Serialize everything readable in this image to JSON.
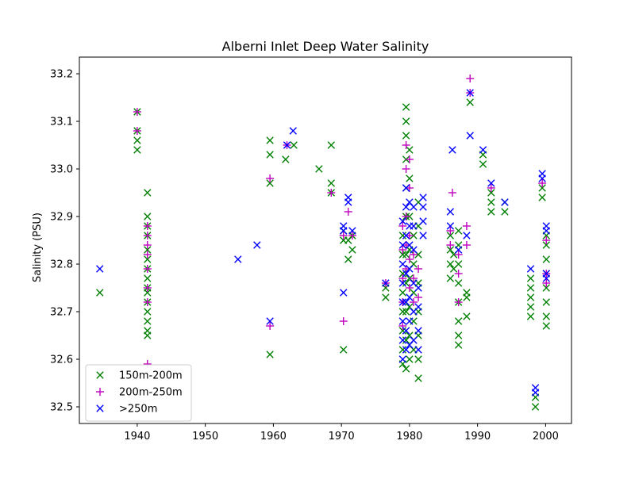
{
  "chart_data": {
    "type": "scatter",
    "title": "Alberni Inlet Deep Water Salinity",
    "xlabel": "",
    "ylabel": "Salinity (PSU)",
    "xlim": [
      1931.5,
      2003.8
    ],
    "ylim": [
      32.465,
      33.235
    ],
    "xticks": [
      1940,
      1950,
      1960,
      1970,
      1980,
      1990,
      2000
    ],
    "yticks": [
      32.5,
      32.6,
      32.7,
      32.8,
      32.9,
      33.0,
      33.1,
      33.2
    ],
    "xtick_labels": [
      "1940",
      "1950",
      "1960",
      "1970",
      "1980",
      "1990",
      "2000"
    ],
    "ytick_labels": [
      "32.5",
      "32.6",
      "32.7",
      "32.8",
      "32.9",
      "33.0",
      "33.1",
      "33.2"
    ],
    "legend_position": "lower-left",
    "series": [
      {
        "name": "150m-200m",
        "marker": "x",
        "color": "#008000",
        "points": [
          [
            1934.5,
            32.74
          ],
          [
            1940.0,
            33.04
          ],
          [
            1940.0,
            33.06
          ],
          [
            1940.0,
            33.08
          ],
          [
            1940.0,
            33.12
          ],
          [
            1941.5,
            32.65
          ],
          [
            1941.5,
            32.66
          ],
          [
            1941.5,
            32.68
          ],
          [
            1941.5,
            32.7
          ],
          [
            1941.5,
            32.72
          ],
          [
            1941.5,
            32.74
          ],
          [
            1941.5,
            32.75
          ],
          [
            1941.5,
            32.77
          ],
          [
            1941.5,
            32.79
          ],
          [
            1941.5,
            32.81
          ],
          [
            1941.5,
            32.83
          ],
          [
            1941.5,
            32.86
          ],
          [
            1941.5,
            32.88
          ],
          [
            1941.5,
            32.9
          ],
          [
            1941.5,
            32.95
          ],
          [
            1959.5,
            32.61
          ],
          [
            1959.5,
            32.97
          ],
          [
            1959.5,
            33.03
          ],
          [
            1959.5,
            33.06
          ],
          [
            1961.8,
            33.02
          ],
          [
            1963.0,
            33.05
          ],
          [
            1966.7,
            33.0
          ],
          [
            1968.5,
            32.95
          ],
          [
            1968.5,
            32.97
          ],
          [
            1968.5,
            33.05
          ],
          [
            1970.3,
            32.62
          ],
          [
            1970.3,
            32.85
          ],
          [
            1970.3,
            32.87
          ],
          [
            1971.0,
            32.81
          ],
          [
            1971.0,
            32.85
          ],
          [
            1971.6,
            32.83
          ],
          [
            1971.6,
            32.86
          ],
          [
            1976.5,
            32.73
          ],
          [
            1976.5,
            32.75
          ],
          [
            1979.0,
            32.59
          ],
          [
            1979.0,
            32.62
          ],
          [
            1979.0,
            32.66
          ],
          [
            1979.0,
            32.7
          ],
          [
            1979.0,
            32.74
          ],
          [
            1979.0,
            32.78
          ],
          [
            1979.0,
            32.82
          ],
          [
            1979.0,
            32.86
          ],
          [
            1979.5,
            32.58
          ],
          [
            1979.5,
            32.64
          ],
          [
            1979.5,
            32.7
          ],
          [
            1979.5,
            32.76
          ],
          [
            1979.5,
            32.82
          ],
          [
            1979.5,
            32.9
          ],
          [
            1979.5,
            32.96
          ],
          [
            1979.5,
            33.02
          ],
          [
            1979.5,
            33.07
          ],
          [
            1979.5,
            33.1
          ],
          [
            1979.5,
            33.13
          ],
          [
            1980.0,
            32.6
          ],
          [
            1980.0,
            32.65
          ],
          [
            1980.0,
            32.71
          ],
          [
            1980.0,
            32.77
          ],
          [
            1980.0,
            32.83
          ],
          [
            1980.0,
            32.9
          ],
          [
            1980.0,
            32.98
          ],
          [
            1980.0,
            33.04
          ],
          [
            1980.6,
            32.62
          ],
          [
            1980.6,
            32.68
          ],
          [
            1980.6,
            32.74
          ],
          [
            1980.6,
            32.8
          ],
          [
            1980.6,
            32.86
          ],
          [
            1981.3,
            32.56
          ],
          [
            1981.3,
            32.6
          ],
          [
            1981.3,
            32.65
          ],
          [
            1981.3,
            32.7
          ],
          [
            1981.3,
            32.76
          ],
          [
            1981.3,
            32.82
          ],
          [
            1981.3,
            32.88
          ],
          [
            1981.3,
            32.93
          ],
          [
            1986.0,
            32.77
          ],
          [
            1986.0,
            32.8
          ],
          [
            1986.0,
            32.83
          ],
          [
            1986.0,
            32.86
          ],
          [
            1986.5,
            32.79
          ],
          [
            1986.5,
            32.82
          ],
          [
            1987.2,
            32.63
          ],
          [
            1987.2,
            32.65
          ],
          [
            1987.2,
            32.68
          ],
          [
            1987.2,
            32.72
          ],
          [
            1987.2,
            32.76
          ],
          [
            1987.2,
            32.8
          ],
          [
            1987.2,
            32.84
          ],
          [
            1987.2,
            32.87
          ],
          [
            1988.4,
            32.69
          ],
          [
            1988.4,
            32.73
          ],
          [
            1988.4,
            32.74
          ],
          [
            1988.9,
            33.14
          ],
          [
            1990.8,
            33.01
          ],
          [
            1990.8,
            33.03
          ],
          [
            1992.0,
            32.91
          ],
          [
            1992.0,
            32.93
          ],
          [
            1992.0,
            32.95
          ],
          [
            1994.0,
            32.91
          ],
          [
            1994.0,
            32.93
          ],
          [
            1997.8,
            32.69
          ],
          [
            1997.8,
            32.71
          ],
          [
            1997.8,
            32.73
          ],
          [
            1997.8,
            32.75
          ],
          [
            1997.8,
            32.77
          ],
          [
            1998.5,
            32.5
          ],
          [
            1998.5,
            32.52
          ],
          [
            1999.5,
            32.94
          ],
          [
            1999.5,
            32.96
          ],
          [
            2000.1,
            32.67
          ],
          [
            2000.1,
            32.69
          ],
          [
            2000.1,
            32.72
          ],
          [
            2000.1,
            32.75
          ],
          [
            2000.1,
            32.78
          ],
          [
            2000.1,
            32.81
          ],
          [
            2000.1,
            32.84
          ],
          [
            2000.1,
            32.86
          ]
        ]
      },
      {
        "name": "200m-250m",
        "marker": "+",
        "color": "#bf00bf",
        "points": [
          [
            1940.0,
            33.08
          ],
          [
            1940.0,
            33.12
          ],
          [
            1941.5,
            32.59
          ],
          [
            1941.5,
            32.72
          ],
          [
            1941.5,
            32.75
          ],
          [
            1941.5,
            32.79
          ],
          [
            1941.5,
            32.82
          ],
          [
            1941.5,
            32.84
          ],
          [
            1941.5,
            32.86
          ],
          [
            1941.5,
            32.88
          ],
          [
            1959.5,
            32.67
          ],
          [
            1959.5,
            32.98
          ],
          [
            1962.0,
            33.05
          ],
          [
            1968.5,
            32.95
          ],
          [
            1970.3,
            32.68
          ],
          [
            1970.3,
            32.86
          ],
          [
            1971.0,
            32.91
          ],
          [
            1971.6,
            32.86
          ],
          [
            1976.5,
            32.76
          ],
          [
            1979.0,
            32.67
          ],
          [
            1979.0,
            32.72
          ],
          [
            1979.0,
            32.77
          ],
          [
            1979.0,
            32.83
          ],
          [
            1979.0,
            32.88
          ],
          [
            1979.5,
            32.79
          ],
          [
            1979.5,
            32.84
          ],
          [
            1979.5,
            32.9
          ],
          [
            1979.5,
            33.0
          ],
          [
            1979.5,
            33.05
          ],
          [
            1980.0,
            32.75
          ],
          [
            1980.0,
            32.81
          ],
          [
            1980.0,
            32.86
          ],
          [
            1980.0,
            32.96
          ],
          [
            1980.0,
            33.02
          ],
          [
            1980.6,
            32.72
          ],
          [
            1980.6,
            32.77
          ],
          [
            1980.6,
            32.82
          ],
          [
            1981.3,
            32.73
          ],
          [
            1981.3,
            32.79
          ],
          [
            1986.0,
            32.84
          ],
          [
            1986.0,
            32.87
          ],
          [
            1986.3,
            32.95
          ],
          [
            1987.2,
            32.72
          ],
          [
            1987.2,
            32.78
          ],
          [
            1987.2,
            32.82
          ],
          [
            1988.4,
            32.84
          ],
          [
            1988.4,
            32.88
          ],
          [
            1988.9,
            33.19
          ],
          [
            1988.9,
            33.16
          ],
          [
            1992.0,
            32.96
          ],
          [
            1999.5,
            32.97
          ],
          [
            2000.1,
            32.76
          ],
          [
            2000.1,
            32.78
          ],
          [
            2000.1,
            32.85
          ]
        ]
      },
      {
        "name": ">250m",
        "marker": "x",
        "color": "#0000ff",
        "points": [
          [
            1934.5,
            32.79
          ],
          [
            1954.8,
            32.81
          ],
          [
            1957.6,
            32.84
          ],
          [
            1959.5,
            32.68
          ],
          [
            1962.0,
            33.05
          ],
          [
            1962.9,
            33.08
          ],
          [
            1970.3,
            32.74
          ],
          [
            1970.3,
            32.87
          ],
          [
            1970.3,
            32.88
          ],
          [
            1971.0,
            32.93
          ],
          [
            1971.0,
            32.94
          ],
          [
            1971.6,
            32.87
          ],
          [
            1976.5,
            32.76
          ],
          [
            1979.0,
            32.6
          ],
          [
            1979.0,
            32.64
          ],
          [
            1979.0,
            32.68
          ],
          [
            1979.0,
            32.72
          ],
          [
            1979.0,
            32.76
          ],
          [
            1979.0,
            32.8
          ],
          [
            1979.0,
            32.84
          ],
          [
            1979.0,
            32.89
          ],
          [
            1979.5,
            32.62
          ],
          [
            1979.5,
            32.66
          ],
          [
            1979.5,
            32.72
          ],
          [
            1979.5,
            32.78
          ],
          [
            1979.5,
            32.86
          ],
          [
            1979.5,
            32.92
          ],
          [
            1979.5,
            32.96
          ],
          [
            1980.0,
            32.63
          ],
          [
            1980.0,
            32.68
          ],
          [
            1980.0,
            32.73
          ],
          [
            1980.0,
            32.79
          ],
          [
            1980.0,
            32.84
          ],
          [
            1980.0,
            32.88
          ],
          [
            1980.0,
            32.93
          ],
          [
            1980.6,
            32.64
          ],
          [
            1980.6,
            32.7
          ],
          [
            1980.6,
            32.76
          ],
          [
            1980.6,
            32.83
          ],
          [
            1980.6,
            32.88
          ],
          [
            1980.6,
            32.92
          ],
          [
            1981.3,
            32.62
          ],
          [
            1981.3,
            32.66
          ],
          [
            1981.3,
            32.71
          ],
          [
            1981.3,
            32.75
          ],
          [
            1982.0,
            32.86
          ],
          [
            1982.0,
            32.89
          ],
          [
            1982.0,
            32.92
          ],
          [
            1982.0,
            32.94
          ],
          [
            1986.0,
            32.88
          ],
          [
            1986.0,
            32.91
          ],
          [
            1986.3,
            33.04
          ],
          [
            1987.2,
            32.83
          ],
          [
            1988.4,
            32.86
          ],
          [
            1988.9,
            33.07
          ],
          [
            1988.9,
            33.16
          ],
          [
            1990.8,
            33.04
          ],
          [
            1992.0,
            32.97
          ],
          [
            1994.0,
            32.93
          ],
          [
            1997.8,
            32.79
          ],
          [
            1998.5,
            32.53
          ],
          [
            1998.5,
            32.54
          ],
          [
            1999.5,
            32.98
          ],
          [
            1999.5,
            32.99
          ],
          [
            2000.1,
            32.77
          ],
          [
            2000.1,
            32.78
          ],
          [
            2000.1,
            32.87
          ],
          [
            2000.1,
            32.88
          ]
        ]
      }
    ]
  }
}
